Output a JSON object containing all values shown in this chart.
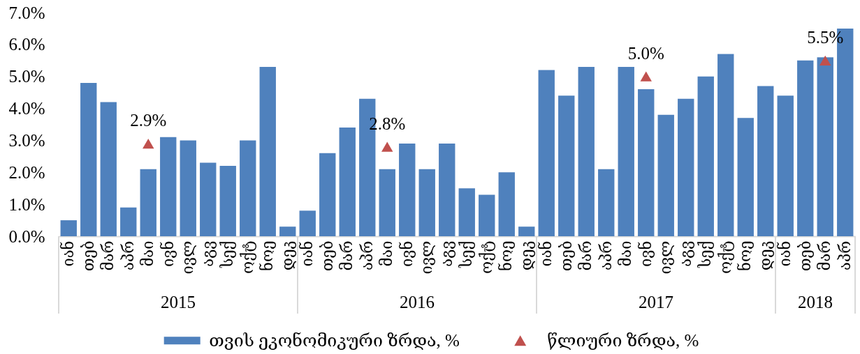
{
  "chart_data": {
    "type": "bar",
    "categories": [
      "იან",
      "თებ",
      "მარ",
      "აპრ",
      "მაი",
      "ივნ",
      "ივლ",
      "აგვ",
      "სექ",
      "ოქტ",
      "ნოე",
      "დეკ",
      "იან",
      "თებ",
      "მარ",
      "აპრ",
      "მაი",
      "ივნ",
      "ივლ",
      "აგვ",
      "სექ",
      "ოქტ",
      "ნოე",
      "დეკ",
      "იან",
      "თებ",
      "მარ",
      "აპრ",
      "მაი",
      "ივნ",
      "ივლ",
      "აგვ",
      "სექ",
      "ოქტ",
      "ნოე",
      "დეკ",
      "იან",
      "თებ",
      "მარ",
      "აპრ"
    ],
    "series": [
      {
        "name": "თვის ეკონომიკური ზრდა, %",
        "color": "#4f81bd",
        "values": [
          0.5,
          4.8,
          4.2,
          0.9,
          2.1,
          3.1,
          3.0,
          2.3,
          2.2,
          3.0,
          5.3,
          0.3,
          0.8,
          2.6,
          3.4,
          4.3,
          2.1,
          2.9,
          2.1,
          2.9,
          1.5,
          1.3,
          2.0,
          0.3,
          5.2,
          4.4,
          5.3,
          2.1,
          5.3,
          4.6,
          3.8,
          4.3,
          5.0,
          5.7,
          3.7,
          4.7,
          4.4,
          5.5,
          5.6,
          6.5
        ]
      },
      {
        "name": "წლიური ზრდა, %",
        "type": "scatter",
        "color": "#c0504d",
        "values": [
          null,
          null,
          null,
          null,
          2.9,
          null,
          null,
          null,
          null,
          null,
          null,
          null,
          null,
          null,
          null,
          null,
          2.8,
          null,
          null,
          null,
          null,
          null,
          null,
          null,
          null,
          null,
          null,
          null,
          null,
          5.0,
          null,
          null,
          null,
          null,
          null,
          null,
          null,
          null,
          5.5,
          null
        ],
        "value_labels": [
          null,
          null,
          null,
          null,
          "2.9%",
          null,
          null,
          null,
          null,
          null,
          null,
          null,
          null,
          null,
          null,
          null,
          "2.8%",
          null,
          null,
          null,
          null,
          null,
          null,
          null,
          null,
          null,
          null,
          null,
          null,
          "5.0%",
          null,
          null,
          null,
          null,
          null,
          null,
          null,
          null,
          "5.5%",
          null
        ]
      }
    ],
    "ylim": [
      0,
      7
    ],
    "yticks": [
      {
        "value": 0,
        "label": "0.0%"
      },
      {
        "value": 1,
        "label": "1.0%"
      },
      {
        "value": 2,
        "label": "2.0%"
      },
      {
        "value": 3,
        "label": "3.0%"
      },
      {
        "value": 4,
        "label": "4.0%"
      },
      {
        "value": 5,
        "label": "5.0%"
      },
      {
        "value": 6,
        "label": "6.0%"
      },
      {
        "value": 7,
        "label": "7.0%"
      }
    ],
    "marker": "triangle",
    "legend": "bottom",
    "annotations": [
      "2015",
      "2016",
      "2017",
      "2018"
    ]
  }
}
